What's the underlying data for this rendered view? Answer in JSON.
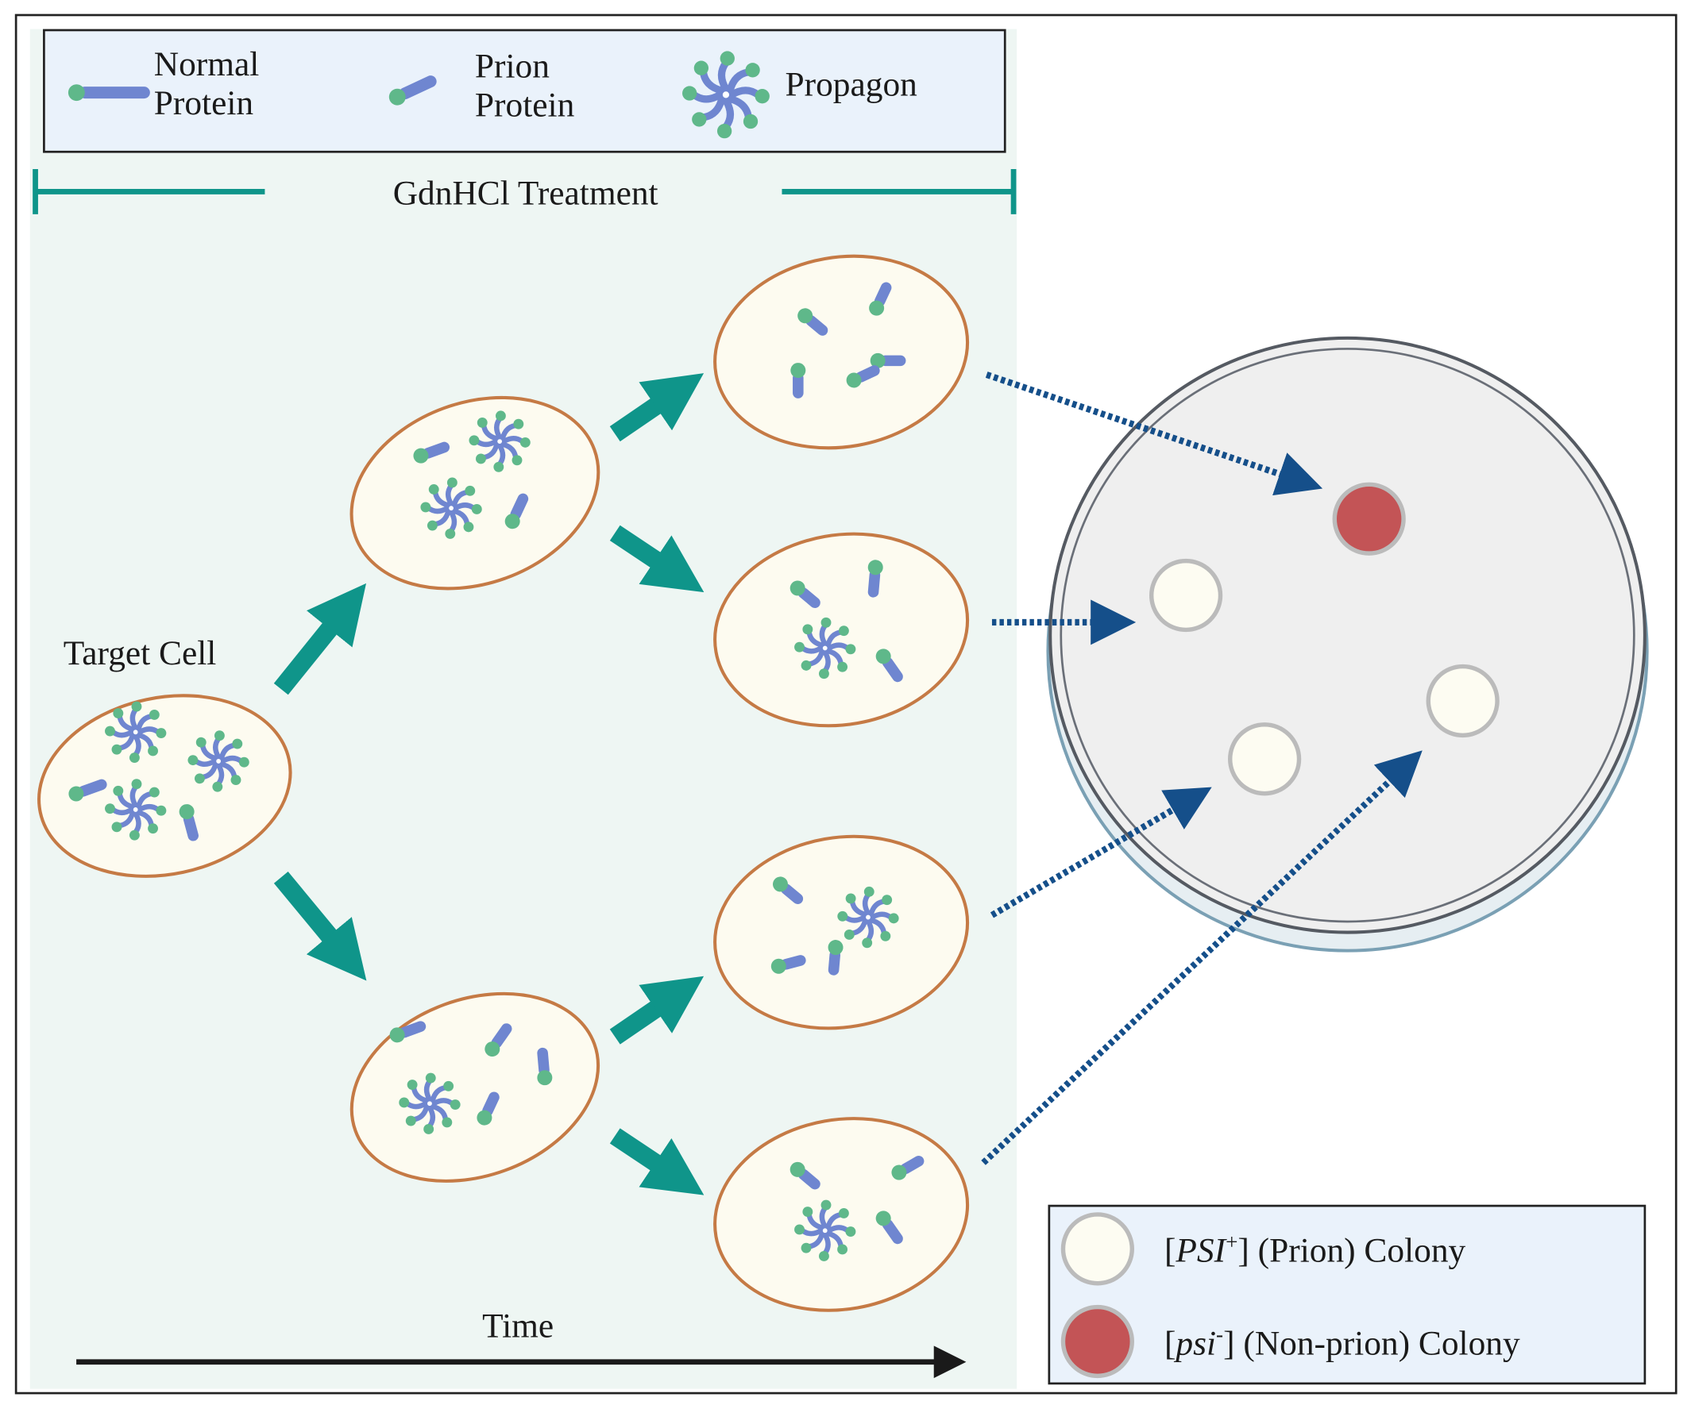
{
  "legend": {
    "items": [
      {
        "lines": [
          "Normal",
          "Protein"
        ]
      },
      {
        "lines": [
          "Prion",
          "Protein"
        ]
      },
      {
        "lines": [
          "Propagon"
        ]
      }
    ]
  },
  "treatment": "GdnHCl Treatment",
  "target_cell": "Target Cell",
  "time": "Time",
  "colony_legend": [
    {
      "open": "[",
      "name": "PSI",
      "sup": "+",
      "close": "] (Prion) Colony"
    },
    {
      "open": "[",
      "name": "psi",
      "sup": "-",
      "close": "] (Non-prion) Colony"
    }
  ]
}
